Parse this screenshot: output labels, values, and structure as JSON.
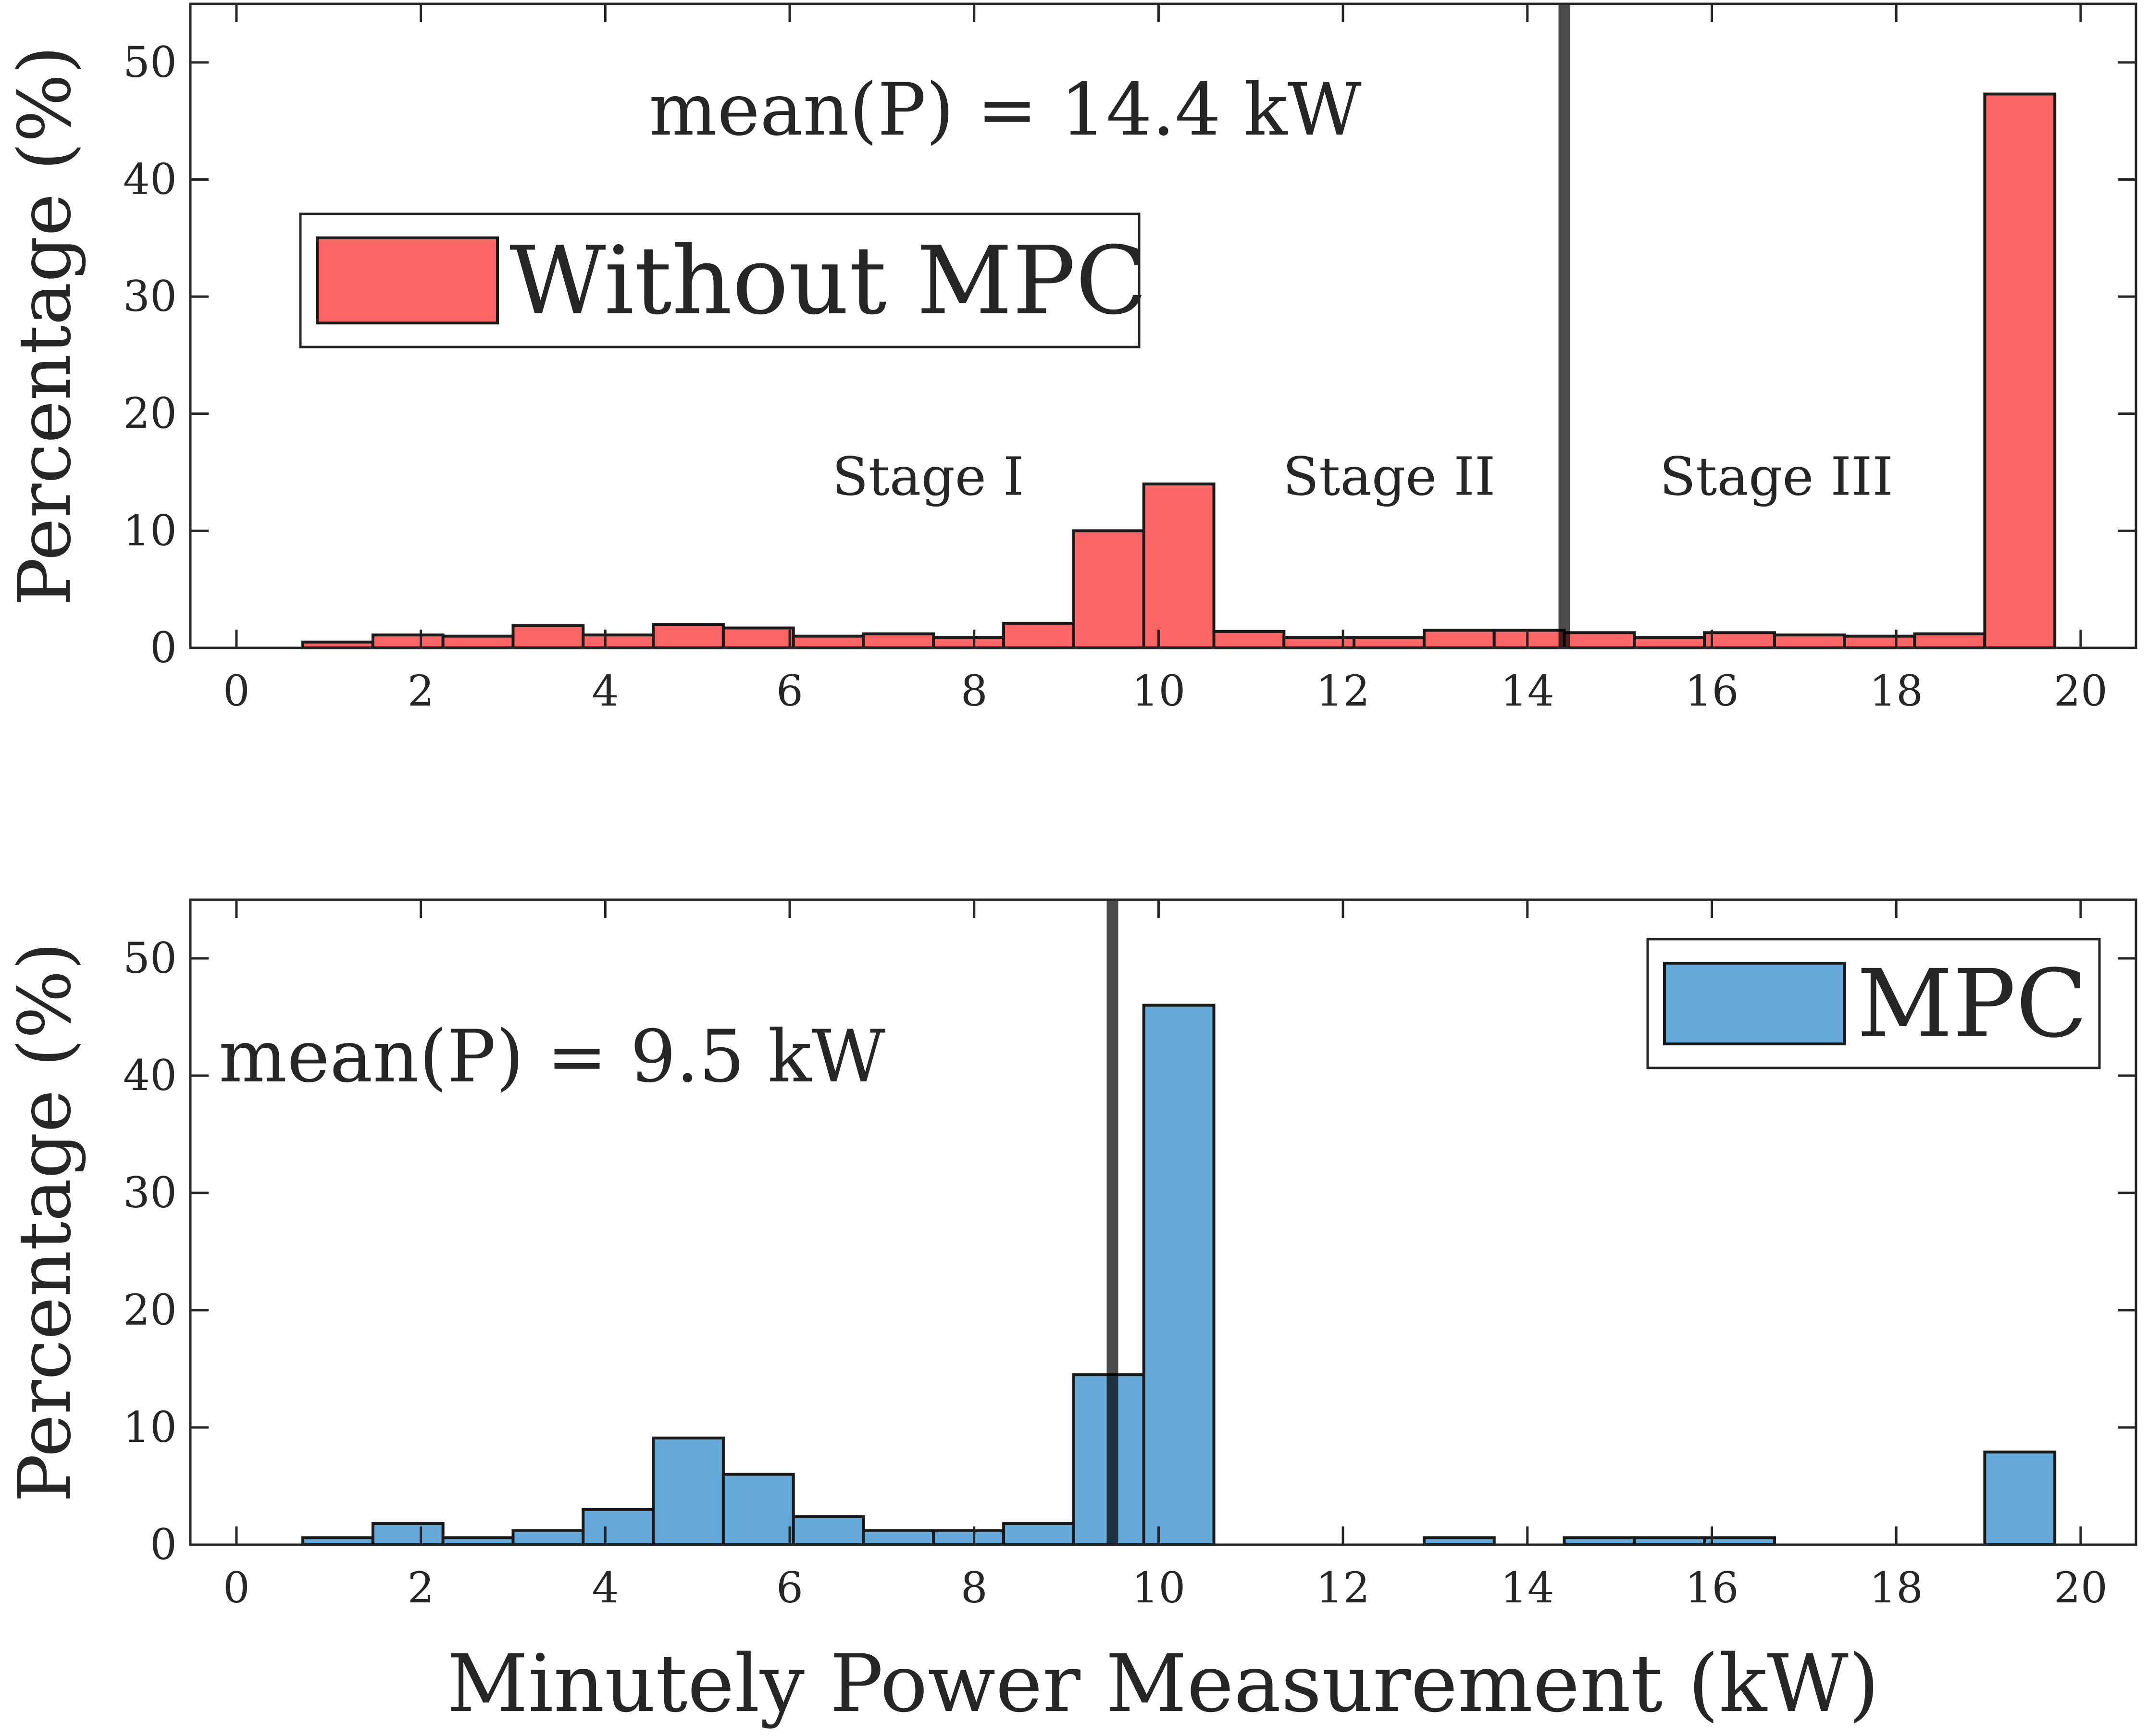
{
  "chart_data": [
    {
      "type": "histogram",
      "legend": "Without MPC",
      "color": "#FF6666",
      "ylabel": "Percentage (%)",
      "xlabel": "",
      "xlim": [
        -0.5,
        20.6
      ],
      "ylim": [
        0,
        55
      ],
      "xticks": [
        "0",
        "2",
        "4",
        "6",
        "8",
        "10",
        "12",
        "14",
        "16",
        "18",
        "20"
      ],
      "yticks": [
        "0",
        "10",
        "20",
        "30",
        "40",
        "50"
      ],
      "bin_width": 0.76,
      "bin_start": 0.72,
      "values": [
        0.5,
        1.1,
        1.0,
        1.9,
        1.1,
        2.0,
        1.7,
        1.0,
        1.2,
        0.9,
        2.1,
        10.0,
        14.0,
        1.4,
        0.9,
        0.9,
        1.5,
        1.5,
        1.3,
        0.9,
        1.3,
        1.1,
        1.0,
        1.2,
        47.3
      ],
      "mean_line": 14.4,
      "mean_label": "mean(P) = 14.4 kW",
      "annotations": [
        {
          "text": "Stage I",
          "x": 7.5,
          "y": 14.5
        },
        {
          "text": "Stage II",
          "x": 12.5,
          "y": 14.5
        },
        {
          "text": "Stage III",
          "x": 16.7,
          "y": 14.5
        }
      ],
      "legend_position": "top-left"
    },
    {
      "type": "histogram",
      "legend": "MPC",
      "color": "#66AADA",
      "ylabel": "Percentage (%)",
      "xlabel": "Minutely Power Measurement (kW)",
      "xlim": [
        -0.5,
        20.6
      ],
      "ylim": [
        0,
        55
      ],
      "xticks": [
        "0",
        "2",
        "4",
        "6",
        "8",
        "10",
        "12",
        "14",
        "16",
        "18",
        "20"
      ],
      "yticks": [
        "0",
        "10",
        "20",
        "30",
        "40",
        "50"
      ],
      "bin_width": 0.76,
      "bin_start": 0.72,
      "values": [
        0.6,
        1.8,
        0.6,
        1.2,
        3.0,
        9.1,
        6.0,
        2.4,
        1.2,
        1.2,
        1.8,
        14.5,
        46.0,
        0,
        0,
        0,
        0.6,
        0,
        0.6,
        0.6,
        0.6,
        0,
        0,
        0,
        7.9
      ],
      "mean_line": 9.5,
      "mean_label": "mean(P) = 9.5 kW",
      "annotations": [],
      "legend_position": "top-right"
    }
  ]
}
